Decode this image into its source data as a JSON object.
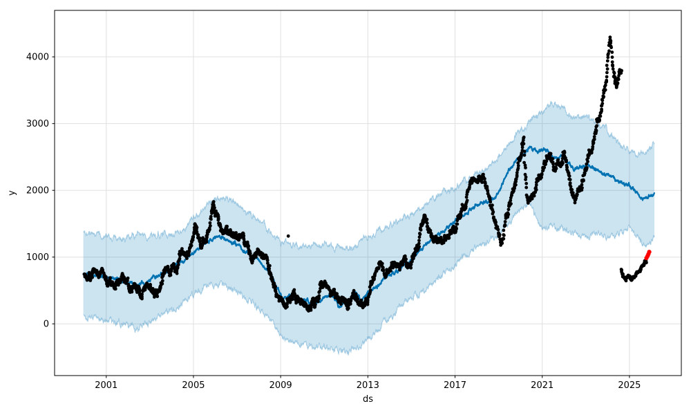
{
  "figure": {
    "background": "#ffffff",
    "kind": "time-series forecast plot with uncertainty interval (Prophet-style)"
  },
  "chart_data": {
    "type": "line",
    "subtype": "scatter + forecast line + uncertainty band",
    "title": "",
    "xlabel": "ds",
    "ylabel": "y",
    "xlim": [
      1998.63,
      2027.38
    ],
    "ylim": [
      -775,
      4696
    ],
    "x_tick_values": [
      2001,
      2005,
      2009,
      2013,
      2017,
      2021,
      2025
    ],
    "x_tick_labels": [
      "2001",
      "2005",
      "2009",
      "2013",
      "2017",
      "2021",
      "2025"
    ],
    "y_tick_values": [
      0,
      1000,
      2000,
      3000,
      4000
    ],
    "y_tick_labels": [
      "0",
      "1000",
      "2000",
      "3000",
      "4000"
    ],
    "grid": true,
    "grid_color": "#e0e0e0",
    "spine_color": "#000000",
    "legend": "none",
    "colors": {
      "forecast_line": "#0072B2",
      "uncertainty_fill": "rgba(0,114,178,0.2)",
      "uncertainty_edge": "rgba(0,114,178,0.30)",
      "observed": "#000000",
      "highlighted": "#ff0000"
    },
    "series": [
      {
        "name": "uncertainty_interval",
        "type": "band",
        "fill": "rgba(0,114,178,0.2)",
        "edge_stroke": "rgba(0,114,178,0.30)",
        "edge_noise": 60,
        "upper_anchors": [
          [
            1999.95,
            1400
          ],
          [
            2000.5,
            1340
          ],
          [
            2001.0,
            1330
          ],
          [
            2001.5,
            1245
          ],
          [
            2002.0,
            1290
          ],
          [
            2002.5,
            1330
          ],
          [
            2003.0,
            1350
          ],
          [
            2003.5,
            1330
          ],
          [
            2004.0,
            1350
          ],
          [
            2004.5,
            1420
          ],
          [
            2005.0,
            1560
          ],
          [
            2005.5,
            1750
          ],
          [
            2006.0,
            1850
          ],
          [
            2006.35,
            1880
          ],
          [
            2007.0,
            1780
          ],
          [
            2007.5,
            1680
          ],
          [
            2008.0,
            1560
          ],
          [
            2008.5,
            1400
          ],
          [
            2009.0,
            1220
          ],
          [
            2009.5,
            1185
          ],
          [
            2010.0,
            1170
          ],
          [
            2010.5,
            1160
          ],
          [
            2011.0,
            1180
          ],
          [
            2011.5,
            1140
          ],
          [
            2012.0,
            1120
          ],
          [
            2012.5,
            1180
          ],
          [
            2013.0,
            1320
          ],
          [
            2013.5,
            1390
          ],
          [
            2014.0,
            1460
          ],
          [
            2014.5,
            1550
          ],
          [
            2015.0,
            1650
          ],
          [
            2015.5,
            1750
          ],
          [
            2016.0,
            1870
          ],
          [
            2016.5,
            1980
          ],
          [
            2017.0,
            2060
          ],
          [
            2017.5,
            2150
          ],
          [
            2018.0,
            2250
          ],
          [
            2018.5,
            2350
          ],
          [
            2019.0,
            2500
          ],
          [
            2019.5,
            2700
          ],
          [
            2020.0,
            2900
          ],
          [
            2020.5,
            3050
          ],
          [
            2021.0,
            3150
          ],
          [
            2021.4,
            3300
          ],
          [
            2021.8,
            3250
          ],
          [
            2022.2,
            3150
          ],
          [
            2022.6,
            3080
          ],
          [
            2023.0,
            3120
          ],
          [
            2023.4,
            3000
          ],
          [
            2023.8,
            2920
          ],
          [
            2024.2,
            2850
          ],
          [
            2024.6,
            2660
          ],
          [
            2025.0,
            2620
          ],
          [
            2025.4,
            2520
          ],
          [
            2025.7,
            2560
          ],
          [
            2026.15,
            2730
          ]
        ],
        "lower_anchors": [
          [
            1999.95,
            120
          ],
          [
            2000.5,
            75
          ],
          [
            2001.0,
            60
          ],
          [
            2001.5,
            20
          ],
          [
            2002.0,
            -40
          ],
          [
            2002.5,
            -70
          ],
          [
            2003.0,
            40
          ],
          [
            2003.5,
            130
          ],
          [
            2004.0,
            220
          ],
          [
            2004.5,
            330
          ],
          [
            2005.0,
            440
          ],
          [
            2005.5,
            560
          ],
          [
            2006.0,
            620
          ],
          [
            2006.5,
            580
          ],
          [
            2007.0,
            480
          ],
          [
            2007.5,
            380
          ],
          [
            2008.0,
            250
          ],
          [
            2008.5,
            60
          ],
          [
            2009.0,
            -150
          ],
          [
            2009.5,
            -260
          ],
          [
            2010.0,
            -300
          ],
          [
            2010.5,
            -340
          ],
          [
            2011.0,
            -340
          ],
          [
            2011.5,
            -390
          ],
          [
            2012.0,
            -400
          ],
          [
            2012.5,
            -350
          ],
          [
            2013.0,
            -220
          ],
          [
            2013.5,
            -80
          ],
          [
            2014.0,
            90
          ],
          [
            2014.5,
            240
          ],
          [
            2015.0,
            380
          ],
          [
            2015.5,
            480
          ],
          [
            2016.0,
            610
          ],
          [
            2016.5,
            750
          ],
          [
            2017.0,
            900
          ],
          [
            2017.5,
            1030
          ],
          [
            2018.0,
            1150
          ],
          [
            2018.5,
            1250
          ],
          [
            2019.0,
            1340
          ],
          [
            2019.5,
            1520
          ],
          [
            2020.0,
            1720
          ],
          [
            2020.4,
            1790
          ],
          [
            2021.0,
            1480
          ],
          [
            2021.5,
            1450
          ],
          [
            2022.0,
            1420
          ],
          [
            2022.5,
            1360
          ],
          [
            2023.0,
            1310
          ],
          [
            2023.5,
            1380
          ],
          [
            2024.0,
            1300
          ],
          [
            2024.5,
            1380
          ],
          [
            2025.0,
            1450
          ],
          [
            2025.4,
            1300
          ],
          [
            2025.7,
            1180
          ],
          [
            2026.15,
            1270
          ]
        ]
      },
      {
        "name": "forecast_yhat",
        "type": "line",
        "color": "#0072B2",
        "width": 2.2,
        "noise": 34,
        "anchors": [
          [
            1999.95,
            755
          ],
          [
            2000.5,
            720
          ],
          [
            2001.0,
            690
          ],
          [
            2001.5,
            675
          ],
          [
            2002.0,
            615
          ],
          [
            2002.3,
            575
          ],
          [
            2002.6,
            595
          ],
          [
            2003.0,
            645
          ],
          [
            2003.5,
            760
          ],
          [
            2004.0,
            825
          ],
          [
            2004.5,
            950
          ],
          [
            2005.0,
            1060
          ],
          [
            2005.5,
            1200
          ],
          [
            2006.0,
            1290
          ],
          [
            2006.35,
            1300
          ],
          [
            2006.7,
            1245
          ],
          [
            2007.0,
            1180
          ],
          [
            2007.5,
            1060
          ],
          [
            2008.0,
            950
          ],
          [
            2008.5,
            770
          ],
          [
            2008.8,
            565
          ],
          [
            2009.1,
            355
          ],
          [
            2009.4,
            445
          ],
          [
            2009.8,
            315
          ],
          [
            2010.2,
            345
          ],
          [
            2010.5,
            290
          ],
          [
            2010.8,
            345
          ],
          [
            2011.1,
            420
          ],
          [
            2011.4,
            435
          ],
          [
            2011.65,
            255
          ],
          [
            2012.0,
            295
          ],
          [
            2012.4,
            480
          ],
          [
            2012.7,
            325
          ],
          [
            2013.0,
            475
          ],
          [
            2013.5,
            585
          ],
          [
            2014.0,
            715
          ],
          [
            2014.5,
            825
          ],
          [
            2015.0,
            970
          ],
          [
            2015.5,
            1130
          ],
          [
            2016.0,
            1280
          ],
          [
            2016.5,
            1390
          ],
          [
            2017.0,
            1550
          ],
          [
            2017.5,
            1670
          ],
          [
            2018.0,
            1790
          ],
          [
            2018.5,
            1830
          ],
          [
            2018.8,
            1870
          ],
          [
            2019.3,
            2200
          ],
          [
            2019.8,
            2460
          ],
          [
            2020.1,
            2510
          ],
          [
            2020.4,
            2650
          ],
          [
            2020.8,
            2580
          ],
          [
            2021.1,
            2620
          ],
          [
            2021.5,
            2490
          ],
          [
            2022.0,
            2480
          ],
          [
            2022.5,
            2310
          ],
          [
            2023.0,
            2380
          ],
          [
            2023.5,
            2290
          ],
          [
            2024.0,
            2230
          ],
          [
            2024.5,
            2120
          ],
          [
            2025.0,
            2090
          ],
          [
            2025.35,
            1955
          ],
          [
            2025.6,
            1880
          ],
          [
            2025.85,
            1905
          ],
          [
            2026.15,
            1960
          ]
        ]
      },
      {
        "name": "observed_y",
        "type": "scatter",
        "color": "#000000",
        "radius": 2.4,
        "jitter": 165,
        "step_years": 0.012,
        "anchors": [
          [
            2000.0,
            770
          ],
          [
            2000.3,
            730
          ],
          [
            2000.6,
            760
          ],
          [
            2000.9,
            700
          ],
          [
            2001.2,
            760
          ],
          [
            2001.5,
            650
          ],
          [
            2001.8,
            620
          ],
          [
            2002.1,
            530
          ],
          [
            2002.4,
            455
          ],
          [
            2002.7,
            520
          ],
          [
            2003.0,
            470
          ],
          [
            2003.3,
            545
          ],
          [
            2003.6,
            700
          ],
          [
            2003.9,
            780
          ],
          [
            2004.2,
            900
          ],
          [
            2004.5,
            980
          ],
          [
            2004.8,
            1005
          ],
          [
            2005.1,
            1560
          ],
          [
            2005.35,
            1290
          ],
          [
            2005.6,
            1350
          ],
          [
            2005.9,
            1680
          ],
          [
            2006.1,
            1500
          ],
          [
            2006.4,
            1285
          ],
          [
            2006.7,
            1340
          ],
          [
            2007.0,
            1230
          ],
          [
            2007.3,
            1270
          ],
          [
            2007.6,
            1100
          ],
          [
            2007.9,
            1010
          ],
          [
            2008.2,
            950
          ],
          [
            2008.5,
            800
          ],
          [
            2008.8,
            520
          ],
          [
            2009.1,
            335
          ],
          [
            2009.4,
            405
          ],
          [
            2009.7,
            330
          ],
          [
            2010.0,
            320
          ],
          [
            2010.3,
            310
          ],
          [
            2010.6,
            285
          ],
          [
            2010.9,
            555
          ],
          [
            2011.2,
            380
          ],
          [
            2011.5,
            345
          ],
          [
            2011.8,
            300
          ],
          [
            2012.1,
            350
          ],
          [
            2012.4,
            450
          ],
          [
            2012.7,
            330
          ],
          [
            2013.0,
            400
          ],
          [
            2013.3,
            850
          ],
          [
            2013.55,
            950
          ],
          [
            2013.8,
            700
          ],
          [
            2014.1,
            790
          ],
          [
            2014.4,
            750
          ],
          [
            2014.7,
            850
          ],
          [
            2015.0,
            880
          ],
          [
            2015.3,
            1100
          ],
          [
            2015.6,
            1600
          ],
          [
            2015.9,
            1300
          ],
          [
            2016.2,
            1110
          ],
          [
            2016.5,
            1150
          ],
          [
            2016.8,
            1400
          ],
          [
            2017.1,
            1600
          ],
          [
            2017.4,
            1800
          ],
          [
            2017.7,
            2150
          ],
          [
            2018.0,
            2050
          ],
          [
            2018.3,
            2250
          ],
          [
            2018.6,
            1900
          ],
          [
            2018.9,
            1500
          ],
          [
            2019.1,
            1255
          ],
          [
            2019.4,
            1700
          ],
          [
            2019.7,
            2000
          ],
          [
            2020.0,
            2400
          ],
          [
            2020.15,
            2640
          ],
          [
            2020.3,
            1760
          ],
          [
            2020.6,
            1900
          ],
          [
            2020.9,
            2200
          ],
          [
            2021.2,
            2500
          ],
          [
            2021.5,
            2300
          ],
          [
            2021.8,
            2400
          ],
          [
            2022.0,
            2600
          ],
          [
            2022.2,
            2250
          ],
          [
            2022.5,
            1900
          ],
          [
            2022.8,
            2100
          ],
          [
            2023.0,
            2400
          ],
          [
            2023.3,
            2700
          ],
          [
            2023.6,
            3100
          ],
          [
            2023.9,
            3600
          ],
          [
            2024.1,
            4300
          ],
          [
            2024.25,
            3900
          ],
          [
            2024.4,
            3600
          ],
          [
            2024.55,
            3750
          ],
          [
            2024.65,
            3800
          ]
        ]
      },
      {
        "name": "observed_recent_segment",
        "type": "scatter",
        "color": "#000000",
        "radius": 2.4,
        "jitter": 60,
        "step_years": 0.012,
        "anchors": [
          [
            2024.62,
            820
          ],
          [
            2024.72,
            690
          ],
          [
            2024.82,
            635
          ],
          [
            2024.95,
            700
          ],
          [
            2025.1,
            660
          ],
          [
            2025.25,
            720
          ],
          [
            2025.4,
            780
          ],
          [
            2025.55,
            820
          ],
          [
            2025.7,
            900
          ],
          [
            2025.8,
            960
          ]
        ]
      },
      {
        "name": "observed_outliers",
        "type": "points",
        "color": "#000000",
        "radius": 2.4,
        "points": [
          [
            2008.5,
            870
          ],
          [
            2009.35,
            1315
          ]
        ]
      },
      {
        "name": "highlighted_latest",
        "type": "points",
        "color": "#ff0000",
        "radius": 3.1,
        "points": [
          [
            2025.78,
            985
          ],
          [
            2025.83,
            1015
          ],
          [
            2025.87,
            1045
          ],
          [
            2025.91,
            1078
          ]
        ]
      }
    ]
  }
}
